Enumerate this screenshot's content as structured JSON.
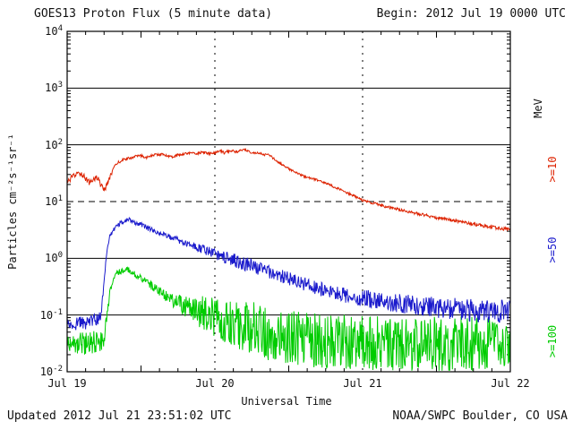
{
  "header": {
    "title": "GOES13 Proton Flux (5 minute data)",
    "begin_label": "Begin: 2012 Jul 19 0000 UTC"
  },
  "footer": {
    "updated": "Updated 2012 Jul 21 23:51:02 UTC",
    "source": "NOAA/SWPC Boulder, CO USA"
  },
  "colors": {
    "red": "#dd2200",
    "blue": "#1a1acc",
    "green": "#00cc00",
    "axis": "#000000",
    "text": "#111111"
  },
  "chart_data": {
    "type": "line",
    "title": "GOES13 Proton Flux (5 minute data)",
    "xlabel": "Universal Time",
    "ylabel": "Particles cm⁻²s⁻¹sr⁻¹",
    "y_unit_label": "MeV",
    "x_hours_range": [
      0,
      72
    ],
    "x_tick_hours": [
      0,
      24,
      48,
      72
    ],
    "x_tick_labels": [
      "Jul 19",
      "Jul 20",
      "Jul 21",
      "Jul 22"
    ],
    "y_log_range": [
      -2,
      4
    ],
    "y_tick_exponents": [
      4,
      3,
      2,
      1,
      0,
      -1,
      -2
    ],
    "grid": {
      "h_solid_exponents": [
        3,
        2,
        0,
        -1
      ],
      "h_dashed_exponent": 1,
      "v_dashed_hours": [
        24,
        48
      ]
    },
    "series": [
      {
        "name": ">=10",
        "color": "#dd2200",
        "points": [
          [
            0,
            22
          ],
          [
            0.7,
            26
          ],
          [
            1.5,
            30
          ],
          [
            2.2,
            32
          ],
          [
            3,
            26
          ],
          [
            3.7,
            21
          ],
          [
            4.3,
            25
          ],
          [
            5,
            27
          ],
          [
            5.6,
            18
          ],
          [
            6.2,
            17
          ],
          [
            6.8,
            24
          ],
          [
            7.5,
            38
          ],
          [
            8.2,
            48
          ],
          [
            9,
            54
          ],
          [
            10,
            58
          ],
          [
            11,
            62
          ],
          [
            12,
            64
          ],
          [
            13,
            60
          ],
          [
            14,
            66
          ],
          [
            15,
            68
          ],
          [
            16,
            66
          ],
          [
            17,
            62
          ],
          [
            18,
            66
          ],
          [
            19,
            70
          ],
          [
            20,
            72
          ],
          [
            21,
            70
          ],
          [
            22,
            74
          ],
          [
            23,
            70
          ],
          [
            24,
            72
          ],
          [
            25,
            78
          ],
          [
            25.5,
            72
          ],
          [
            26,
            76
          ],
          [
            27,
            80
          ],
          [
            27.5,
            74
          ],
          [
            28,
            78
          ],
          [
            29,
            82
          ],
          [
            29.5,
            76
          ],
          [
            30,
            72
          ],
          [
            31,
            73
          ],
          [
            32,
            66
          ],
          [
            32.5,
            70
          ],
          [
            33,
            64
          ],
          [
            34,
            52
          ],
          [
            34.5,
            48
          ],
          [
            35,
            44
          ],
          [
            36,
            38
          ],
          [
            37,
            33
          ],
          [
            38,
            29
          ],
          [
            39,
            27
          ],
          [
            40,
            25
          ],
          [
            41,
            23
          ],
          [
            42,
            21
          ],
          [
            43,
            19
          ],
          [
            44,
            17
          ],
          [
            45,
            15
          ],
          [
            46,
            13.5
          ],
          [
            47,
            12
          ],
          [
            48,
            10.5
          ],
          [
            49,
            9.8
          ],
          [
            50,
            9.2
          ],
          [
            51,
            8.6
          ],
          [
            52,
            8
          ],
          [
            53,
            7.6
          ],
          [
            54,
            7.2
          ],
          [
            55,
            6.8
          ],
          [
            56,
            6.4
          ],
          [
            57,
            6.1
          ],
          [
            58,
            5.8
          ],
          [
            60,
            5.2
          ],
          [
            62,
            4.8
          ],
          [
            64,
            4.4
          ],
          [
            66,
            4.0
          ],
          [
            68,
            3.7
          ],
          [
            70,
            3.4
          ],
          [
            71,
            3.3
          ],
          [
            72,
            3.2
          ]
        ],
        "noise_dex": [
          [
            0,
            0.05
          ],
          [
            6,
            0.05
          ],
          [
            8,
            0.025
          ],
          [
            30,
            0.02
          ],
          [
            40,
            0.02
          ],
          [
            72,
            0.03
          ]
        ]
      },
      {
        "name": ">=50",
        "color": "#1a1acc",
        "points": [
          [
            0,
            0.07
          ],
          [
            1,
            0.065
          ],
          [
            2,
            0.075
          ],
          [
            3,
            0.07
          ],
          [
            4,
            0.08
          ],
          [
            5,
            0.085
          ],
          [
            5.5,
            0.1
          ],
          [
            6,
            0.4
          ],
          [
            6.5,
            1.5
          ],
          [
            7,
            2.6
          ],
          [
            7.5,
            3.1
          ],
          [
            8,
            3.6
          ],
          [
            8.5,
            4.0
          ],
          [
            9,
            4.4
          ],
          [
            9.5,
            4.7
          ],
          [
            10,
            4.8
          ],
          [
            10.5,
            4.6
          ],
          [
            11,
            4.3
          ],
          [
            12,
            3.9
          ],
          [
            13,
            3.4
          ],
          [
            14,
            3.1
          ],
          [
            15,
            2.8
          ],
          [
            16,
            2.5
          ],
          [
            17,
            2.3
          ],
          [
            18,
            2.1
          ],
          [
            19,
            1.9
          ],
          [
            20,
            1.75
          ],
          [
            21,
            1.6
          ],
          [
            22,
            1.45
          ],
          [
            23,
            1.3
          ],
          [
            24,
            1.2
          ],
          [
            25,
            1.1
          ],
          [
            26,
            1.0
          ],
          [
            27,
            0.92
          ],
          [
            28,
            0.85
          ],
          [
            29,
            0.8
          ],
          [
            30,
            0.72
          ],
          [
            31,
            0.67
          ],
          [
            32,
            0.62
          ],
          [
            33,
            0.57
          ],
          [
            34,
            0.52
          ],
          [
            35,
            0.48
          ],
          [
            36,
            0.44
          ],
          [
            37,
            0.4
          ],
          [
            38,
            0.37
          ],
          [
            39,
            0.34
          ],
          [
            40,
            0.31
          ],
          [
            41,
            0.29
          ],
          [
            42,
            0.275
          ],
          [
            43,
            0.26
          ],
          [
            44,
            0.245
          ],
          [
            45,
            0.23
          ],
          [
            46,
            0.22
          ],
          [
            47,
            0.21
          ],
          [
            48,
            0.2
          ],
          [
            50,
            0.185
          ],
          [
            52,
            0.17
          ],
          [
            54,
            0.16
          ],
          [
            56,
            0.15
          ],
          [
            58,
            0.14
          ],
          [
            60,
            0.135
          ],
          [
            62,
            0.13
          ],
          [
            64,
            0.125
          ],
          [
            66,
            0.12
          ],
          [
            68,
            0.115
          ],
          [
            70,
            0.115
          ],
          [
            72,
            0.12
          ]
        ],
        "noise_dex": [
          [
            0,
            0.12
          ],
          [
            5,
            0.1
          ],
          [
            6.5,
            0.04
          ],
          [
            12,
            0.04
          ],
          [
            20,
            0.06
          ],
          [
            24,
            0.1
          ],
          [
            28,
            0.14
          ],
          [
            32,
            0.12
          ],
          [
            40,
            0.12
          ],
          [
            48,
            0.15
          ],
          [
            56,
            0.18
          ],
          [
            64,
            0.2
          ],
          [
            72,
            0.2
          ]
        ]
      },
      {
        "name": ">=100",
        "color": "#00cc00",
        "points": [
          [
            0,
            0.03
          ],
          [
            1,
            0.028
          ],
          [
            2,
            0.032
          ],
          [
            3,
            0.03
          ],
          [
            4,
            0.034
          ],
          [
            5,
            0.032
          ],
          [
            6,
            0.04
          ],
          [
            6.5,
            0.1
          ],
          [
            7,
            0.28
          ],
          [
            7.5,
            0.42
          ],
          [
            8,
            0.52
          ],
          [
            8.5,
            0.58
          ],
          [
            9,
            0.62
          ],
          [
            9.5,
            0.65
          ],
          [
            10,
            0.63
          ],
          [
            10.5,
            0.58
          ],
          [
            11,
            0.52
          ],
          [
            12,
            0.44
          ],
          [
            13,
            0.37
          ],
          [
            14,
            0.31
          ],
          [
            15,
            0.26
          ],
          [
            16,
            0.22
          ],
          [
            17,
            0.19
          ],
          [
            18,
            0.165
          ],
          [
            19,
            0.145
          ],
          [
            20,
            0.13
          ],
          [
            21,
            0.118
          ],
          [
            22,
            0.108
          ],
          [
            23,
            0.098
          ],
          [
            24,
            0.09
          ],
          [
            25,
            0.082
          ],
          [
            26,
            0.076
          ],
          [
            27,
            0.07
          ],
          [
            28,
            0.066
          ],
          [
            29,
            0.062
          ],
          [
            30,
            0.058
          ],
          [
            31,
            0.055
          ],
          [
            32,
            0.052
          ],
          [
            34,
            0.048
          ],
          [
            36,
            0.044
          ],
          [
            38,
            0.04
          ],
          [
            40,
            0.038
          ],
          [
            42,
            0.036
          ],
          [
            44,
            0.035
          ],
          [
            46,
            0.034
          ],
          [
            48,
            0.033
          ],
          [
            52,
            0.032
          ],
          [
            56,
            0.03
          ],
          [
            60,
            0.03
          ],
          [
            64,
            0.031
          ],
          [
            68,
            0.033
          ],
          [
            72,
            0.036
          ]
        ],
        "noise_dex": [
          [
            0,
            0.22
          ],
          [
            5.5,
            0.2
          ],
          [
            7,
            0.06
          ],
          [
            11,
            0.05
          ],
          [
            14,
            0.08
          ],
          [
            17,
            0.12
          ],
          [
            20,
            0.2
          ],
          [
            22,
            0.3
          ],
          [
            24,
            0.38
          ],
          [
            28,
            0.45
          ],
          [
            32,
            0.5
          ],
          [
            40,
            0.5
          ],
          [
            48,
            0.48
          ],
          [
            56,
            0.5
          ],
          [
            64,
            0.5
          ],
          [
            72,
            0.45
          ]
        ]
      }
    ]
  }
}
